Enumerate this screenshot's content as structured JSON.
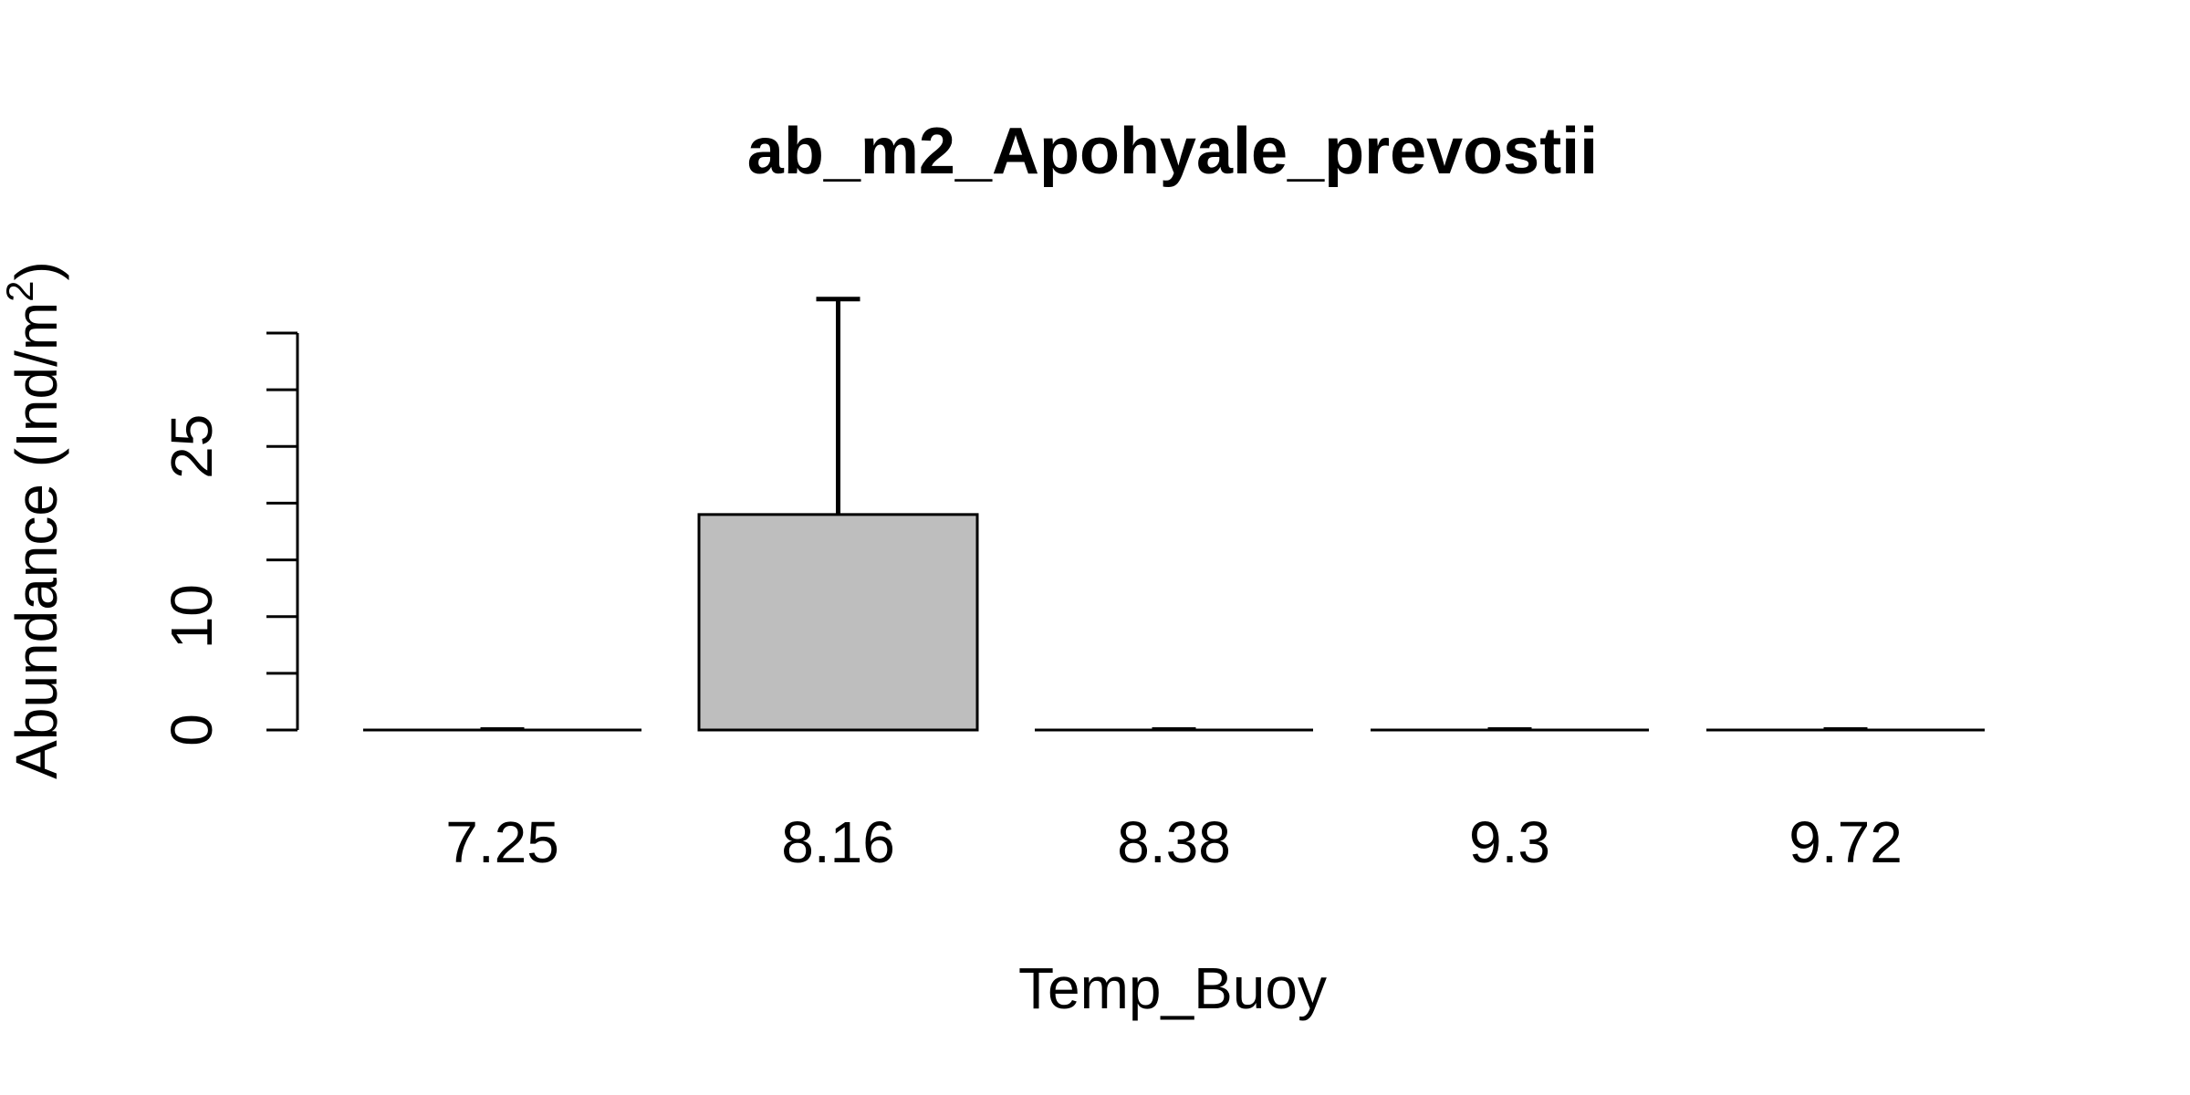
{
  "chart_data": {
    "type": "bar",
    "title": "ab_m2_Apohyale_prevostii",
    "xlabel": "Temp_Buoy",
    "ylabel": "Abundance (Ind/m",
    "ylabel_superscript": "2",
    "ylabel_suffix": ")",
    "categories": [
      "7.25",
      "8.16",
      "8.38",
      "9.3",
      "9.72"
    ],
    "values": [
      0,
      19,
      0,
      0,
      0
    ],
    "error_upper": [
      0,
      38,
      0,
      0,
      0
    ],
    "ylim": [
      0,
      35
    ],
    "y_ticks": [
      0,
      5,
      10,
      15,
      20,
      25,
      30,
      35
    ],
    "y_tick_labels": [
      {
        "value": 0,
        "label": "0"
      },
      {
        "value": 10,
        "label": "10"
      },
      {
        "value": 25,
        "label": "25"
      }
    ],
    "bar_fill": "#bebebe",
    "bar_stroke": "#000000",
    "grid": false,
    "legend": "none"
  }
}
